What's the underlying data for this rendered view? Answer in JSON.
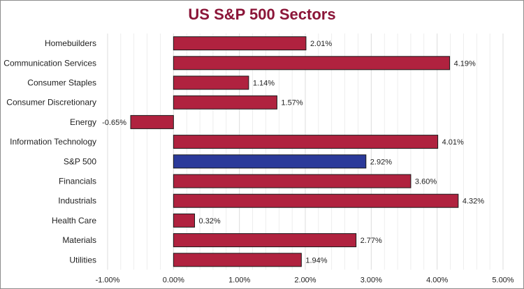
{
  "chart_data": {
    "type": "bar",
    "orientation": "horizontal",
    "title": "US S&P 500 Sectors",
    "categories": [
      "Homebuilders",
      "Communication Services",
      "Consumer Staples",
      "Consumer Discretionary",
      "Energy",
      "Information Technology",
      "S&P 500",
      "Financials",
      "Industrials",
      "Health Care",
      "Materials",
      "Utilities"
    ],
    "values": [
      2.01,
      4.19,
      1.14,
      1.57,
      -0.65,
      4.01,
      2.92,
      3.6,
      4.32,
      0.32,
      2.77,
      1.94
    ],
    "value_labels": [
      "2.01%",
      "4.19%",
      "1.14%",
      "1.57%",
      "-0.65%",
      "4.01%",
      "2.92%",
      "3.60%",
      "4.32%",
      "0.32%",
      "2.77%",
      "1.94%"
    ],
    "highlight_category": "S&P 500",
    "xlim": [
      -1,
      5
    ],
    "x_ticks": [
      -1,
      0,
      1,
      2,
      3,
      4,
      5
    ],
    "x_tick_labels": [
      "-1.00%",
      "0.00%",
      "1.00%",
      "2.00%",
      "3.00%",
      "4.00%",
      "5.00%"
    ],
    "xlabel": "",
    "ylabel": "",
    "grid": "vertical",
    "legend": "none",
    "colors": {
      "bar": "#b0223f",
      "highlight": "#2b3a9a",
      "title": "#8b1538",
      "gridline": "#e3e3e3",
      "bar_outline": "#1a1a1a"
    }
  }
}
